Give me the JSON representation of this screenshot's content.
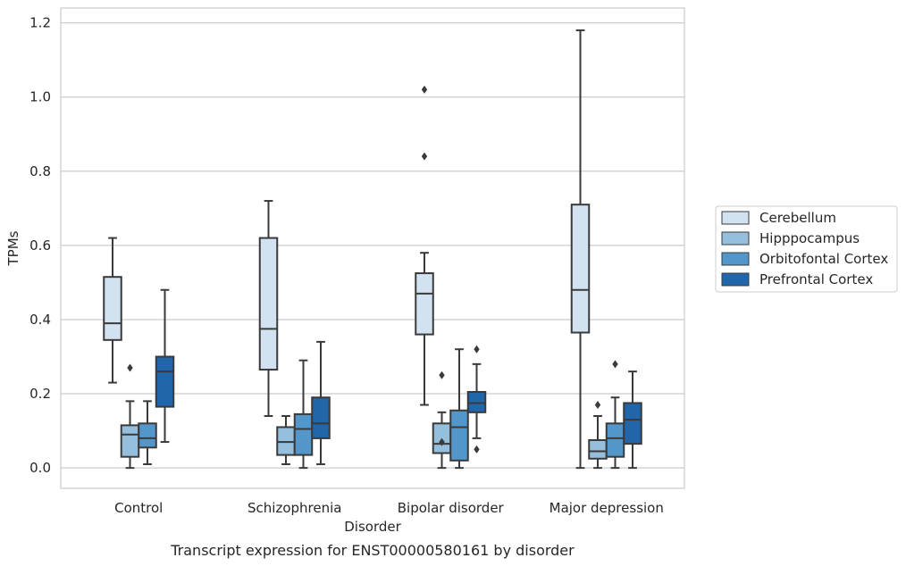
{
  "caption": "Transcript expression for ENST00000580161 by disorder",
  "chart_data": {
    "type": "box",
    "xlabel": "Disorder",
    "ylabel": "TPMs",
    "ylim": [
      -0.055,
      1.24
    ],
    "yticks": [
      "0.0",
      "0.2",
      "0.4",
      "0.6",
      "0.8",
      "1.0",
      "1.2"
    ],
    "ytick_values": [
      0.0,
      0.2,
      0.4,
      0.6,
      0.8,
      1.0,
      1.2
    ],
    "grid": "horizontal",
    "legend_position": "right",
    "categories": [
      "Control",
      "Schizophrenia",
      "Bipolar disorder",
      "Major depression"
    ],
    "series": [
      {
        "name": "Cerebellum",
        "color": "#d2e2f1",
        "boxes": [
          {
            "whislo": 0.23,
            "q1": 0.345,
            "med": 0.39,
            "q3": 0.515,
            "whishi": 0.62,
            "fliers": []
          },
          {
            "whislo": 0.14,
            "q1": 0.265,
            "med": 0.375,
            "q3": 0.62,
            "whishi": 0.72,
            "fliers": []
          },
          {
            "whislo": 0.17,
            "q1": 0.36,
            "med": 0.47,
            "q3": 0.525,
            "whishi": 0.58,
            "fliers": [
              0.84,
              1.02
            ]
          },
          {
            "whislo": 0.0,
            "q1": 0.365,
            "med": 0.48,
            "q3": 0.71,
            "whishi": 1.18,
            "fliers": []
          }
        ]
      },
      {
        "name": "Hipppocampus",
        "color": "#95bfdc",
        "boxes": [
          {
            "whislo": 0.0,
            "q1": 0.03,
            "med": 0.09,
            "q3": 0.115,
            "whishi": 0.18,
            "fliers": [
              0.27
            ]
          },
          {
            "whislo": 0.01,
            "q1": 0.035,
            "med": 0.07,
            "q3": 0.11,
            "whishi": 0.14,
            "fliers": []
          },
          {
            "whislo": 0.0,
            "q1": 0.04,
            "med": 0.065,
            "q3": 0.12,
            "whishi": 0.15,
            "fliers": [
              0.07,
              0.25
            ]
          },
          {
            "whislo": 0.0,
            "q1": 0.025,
            "med": 0.045,
            "q3": 0.075,
            "whishi": 0.14,
            "fliers": [
              0.17
            ]
          }
        ]
      },
      {
        "name": "Orbitofontal Cortex",
        "color": "#5396c9",
        "boxes": [
          {
            "whislo": 0.01,
            "q1": 0.055,
            "med": 0.08,
            "q3": 0.12,
            "whishi": 0.18,
            "fliers": []
          },
          {
            "whislo": 0.0,
            "q1": 0.035,
            "med": 0.105,
            "q3": 0.145,
            "whishi": 0.29,
            "fliers": []
          },
          {
            "whislo": 0.0,
            "q1": 0.02,
            "med": 0.11,
            "q3": 0.155,
            "whishi": 0.32,
            "fliers": []
          },
          {
            "whislo": 0.0,
            "q1": 0.03,
            "med": 0.08,
            "q3": 0.12,
            "whishi": 0.19,
            "fliers": [
              0.28
            ]
          }
        ]
      },
      {
        "name": "Prefrontal Cortex",
        "color": "#2165aa",
        "boxes": [
          {
            "whislo": 0.07,
            "q1": 0.165,
            "med": 0.26,
            "q3": 0.3,
            "whishi": 0.48,
            "fliers": []
          },
          {
            "whislo": 0.01,
            "q1": 0.08,
            "med": 0.12,
            "q3": 0.19,
            "whishi": 0.34,
            "fliers": []
          },
          {
            "whislo": 0.08,
            "q1": 0.15,
            "med": 0.175,
            "q3": 0.205,
            "whishi": 0.28,
            "fliers": [
              0.05,
              0.32
            ]
          },
          {
            "whislo": 0.0,
            "q1": 0.065,
            "med": 0.13,
            "q3": 0.175,
            "whishi": 0.26,
            "fliers": []
          }
        ]
      }
    ]
  }
}
